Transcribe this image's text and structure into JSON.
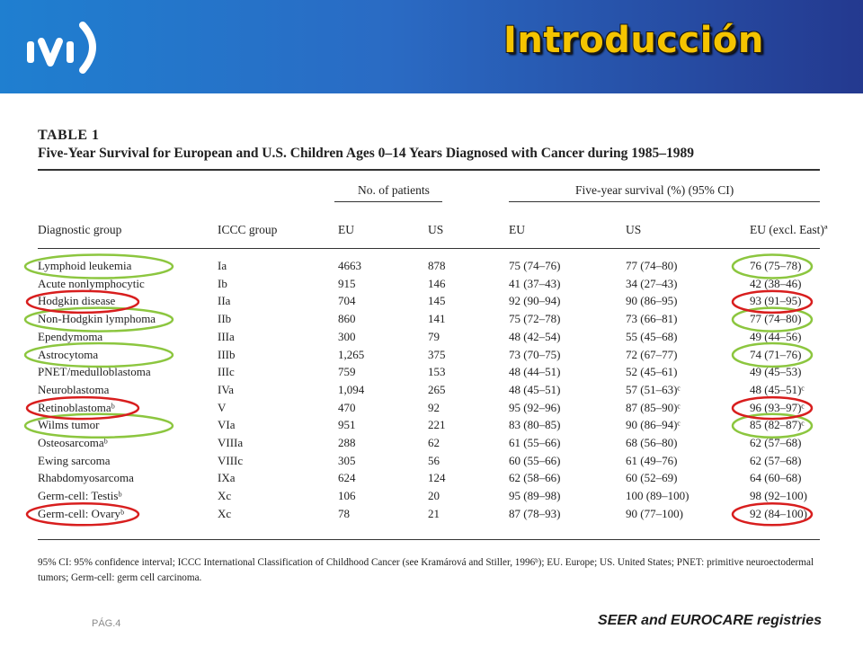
{
  "header": {
    "logo_text": "ivi",
    "title": "Introducción"
  },
  "table": {
    "label": "TABLE 1",
    "caption": "Five-Year Survival for European and U.S. Children Ages 0–14 Years Diagnosed with Cancer during 1985–1989",
    "group_headers": {
      "patients": "No. of patients",
      "survival": "Five-year survival (%) (95% CI)"
    },
    "columns": [
      "Diagnostic group",
      "ICCC group",
      "EU",
      "US",
      "EU",
      "US",
      "EU (excl. East)ª"
    ],
    "rows": [
      [
        "Lymphoid leukemia",
        "Ia",
        "4663",
        "878",
        "75 (74–76)",
        "77 (74–80)",
        "76 (75–78)"
      ],
      [
        "Acute nonlymphocytic",
        "Ib",
        "915",
        "146",
        "41 (37–43)",
        "34 (27–43)",
        "42 (38–46)"
      ],
      [
        "Hodgkin disease",
        "IIa",
        "704",
        "145",
        "92 (90–94)",
        "90 (86–95)",
        "93 (91–95)"
      ],
      [
        "Non-Hodgkin lymphoma",
        "IIb",
        "860",
        "141",
        "75 (72–78)",
        "73 (66–81)",
        "77 (74–80)"
      ],
      [
        "Ependymoma",
        "IIIa",
        "300",
        "79",
        "48 (42–54)",
        "55 (45–68)",
        "49 (44–56)"
      ],
      [
        "Astrocytoma",
        "IIIb",
        "1,265",
        "375",
        "73 (70–75)",
        "72 (67–77)",
        "74 (71–76)"
      ],
      [
        "PNET/medulloblastoma",
        "IIIc",
        "759",
        "153",
        "48 (44–51)",
        "52 (45–61)",
        "49 (45–53)"
      ],
      [
        "Neuroblastoma",
        "IVa",
        "1,094",
        "265",
        "48 (45–51)",
        "57 (51–63)ᶜ",
        "48 (45–51)ᶜ"
      ],
      [
        "Retinoblastomaᵇ",
        "V",
        "470",
        "92",
        "95 (92–96)",
        "87 (85–90)ᶜ",
        "96 (93–97)ᶜ"
      ],
      [
        "Wilms tumor",
        "VIa",
        "951",
        "221",
        "83 (80–85)",
        "90 (86–94)ᶜ",
        "85 (82–87)ᶜ"
      ],
      [
        "Osteosarcomaᵇ",
        "VIIIa",
        "288",
        "62",
        "61 (55–66)",
        "68 (56–80)",
        "62 (57–68)"
      ],
      [
        "Ewing sarcoma",
        "VIIIc",
        "305",
        "56",
        "60 (55–66)",
        "61 (49–76)",
        "62 (57–68)"
      ],
      [
        "Rhabdomyosarcoma",
        "IXa",
        "624",
        "124",
        "62 (58–66)",
        "60 (52–69)",
        "64 (60–68)"
      ],
      [
        "Germ-cell: Testisᵇ",
        "Xc",
        "106",
        "20",
        "95 (89–98)",
        "100 (89–100)",
        "98 (92–100)"
      ],
      [
        "Germ-cell: Ovaryᵇ",
        "Xc",
        "78",
        "21",
        "87 (78–93)",
        "90 (77–100)",
        "92 (84–100)"
      ]
    ],
    "footnote": "95% CI: 95% confidence interval; ICCC International Classification of Childhood Cancer (see Kramárová and Stiller, 1996ᵇ); EU. Europe; US. United States; PNET: primitive neuroectodermal tumors; Germ-cell: germ cell carcinoma."
  },
  "annotations": {
    "green_rows": [
      0,
      3,
      5,
      9
    ],
    "red_rows": [
      2,
      8,
      14
    ],
    "colors": {
      "green": "#8cc63f",
      "red": "#d81e1e"
    }
  },
  "footer": {
    "page": "PÁG.4",
    "source": "SEER and EUROCARE registries"
  }
}
